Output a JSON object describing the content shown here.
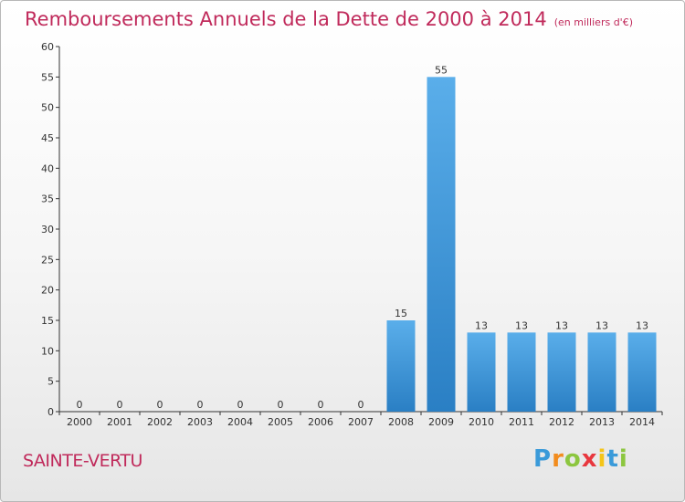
{
  "title": "Remboursements Annuels de la Dette de 2000 à 2014",
  "unit": "(en milliers d'€)",
  "commune": "SAINTE-VERTU",
  "logo_text": "Proxiti",
  "colors": {
    "title": "#c02a5b",
    "bar_top": "#5aaeea",
    "bar_bottom": "#2a7fc4",
    "axis": "#333333",
    "grid": "#dddddd"
  },
  "chart_data": {
    "type": "bar",
    "title": "Remboursements Annuels de la Dette de 2000 à 2014",
    "xlabel": "",
    "ylabel": "",
    "categories": [
      "2000",
      "2001",
      "2002",
      "2003",
      "2004",
      "2005",
      "2006",
      "2007",
      "2008",
      "2009",
      "2010",
      "2011",
      "2012",
      "2013",
      "2014"
    ],
    "values": [
      0,
      0,
      0,
      0,
      0,
      0,
      0,
      0,
      15,
      55,
      13,
      13,
      13,
      13,
      13
    ],
    "ylim": [
      0,
      60
    ],
    "yticks": [
      0,
      5,
      10,
      15,
      20,
      25,
      30,
      35,
      40,
      45,
      50,
      55,
      60
    ],
    "grid": false,
    "legend": "none"
  }
}
